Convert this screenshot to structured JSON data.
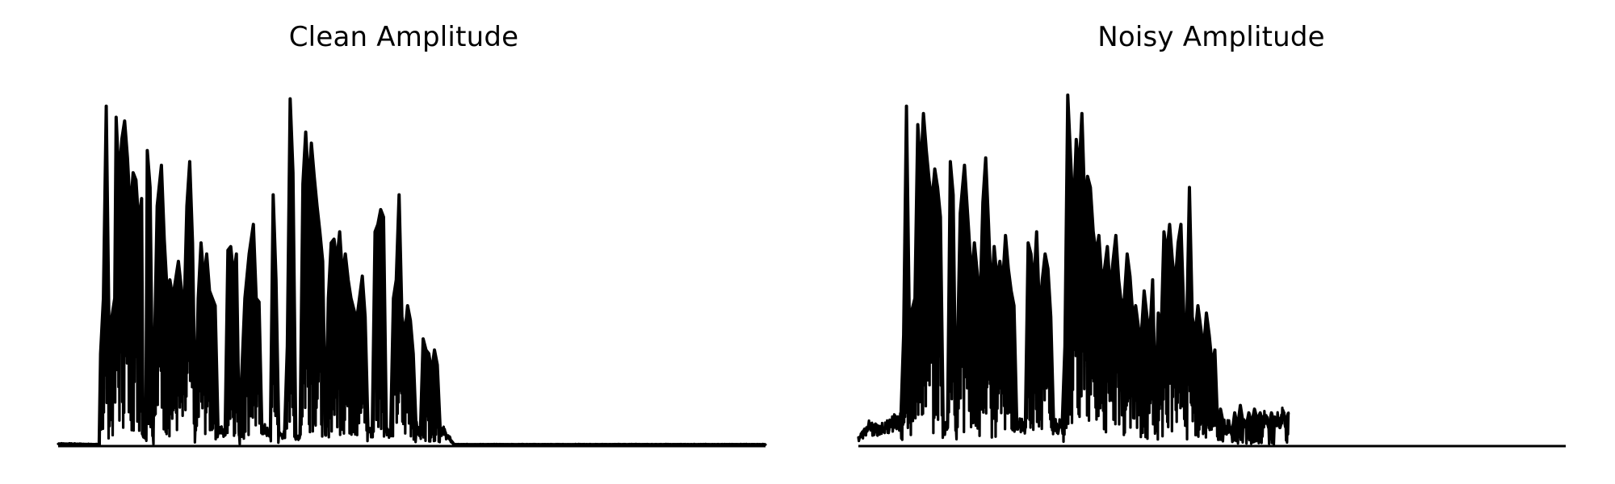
{
  "figure": {
    "background": "#ffffff",
    "line_color": "#000000"
  },
  "chart_data": [
    {
      "type": "line",
      "title": "Clean Amplitude",
      "xlabel": "",
      "ylabel": "",
      "grid": false,
      "axes_visible": false,
      "xlim": [
        0,
        1
      ],
      "ylim": [
        0,
        1
      ],
      "series": [
        {
          "values": [
            [
              0.0,
              0.006
            ],
            [
              0.058,
              0.004
            ],
            [
              0.06,
              0.25
            ],
            [
              0.064,
              0.4
            ],
            [
              0.068,
              0.92
            ],
            [
              0.072,
              0.3
            ],
            [
              0.08,
              0.4
            ],
            [
              0.082,
              0.89
            ],
            [
              0.086,
              0.72
            ],
            [
              0.09,
              0.83
            ],
            [
              0.094,
              0.88
            ],
            [
              0.098,
              0.78
            ],
            [
              0.102,
              0.63
            ],
            [
              0.106,
              0.74
            ],
            [
              0.11,
              0.72
            ],
            [
              0.114,
              0.6
            ],
            [
              0.118,
              0.67
            ],
            [
              0.12,
              0.03
            ],
            [
              0.124,
              0.03
            ],
            [
              0.126,
              0.8
            ],
            [
              0.13,
              0.7
            ],
            [
              0.134,
              0.03
            ],
            [
              0.14,
              0.65
            ],
            [
              0.146,
              0.76
            ],
            [
              0.15,
              0.56
            ],
            [
              0.154,
              0.42
            ],
            [
              0.158,
              0.45
            ],
            [
              0.162,
              0.4
            ],
            [
              0.166,
              0.45
            ],
            [
              0.17,
              0.5
            ],
            [
              0.174,
              0.43
            ],
            [
              0.178,
              0.35
            ],
            [
              0.182,
              0.65
            ],
            [
              0.186,
              0.77
            ],
            [
              0.19,
              0.55
            ],
            [
              0.194,
              0.05
            ],
            [
              0.198,
              0.4
            ],
            [
              0.202,
              0.55
            ],
            [
              0.206,
              0.45
            ],
            [
              0.21,
              0.52
            ],
            [
              0.214,
              0.42
            ],
            [
              0.218,
              0.4
            ],
            [
              0.222,
              0.38
            ],
            [
              0.226,
              0.05
            ],
            [
              0.236,
              0.03
            ],
            [
              0.24,
              0.53
            ],
            [
              0.244,
              0.54
            ],
            [
              0.248,
              0.46
            ],
            [
              0.252,
              0.52
            ],
            [
              0.256,
              0.03
            ],
            [
              0.264,
              0.4
            ],
            [
              0.27,
              0.52
            ],
            [
              0.276,
              0.6
            ],
            [
              0.28,
              0.4
            ],
            [
              0.284,
              0.39
            ],
            [
              0.288,
              0.05
            ],
            [
              0.3,
              0.03
            ],
            [
              0.304,
              0.68
            ],
            [
              0.308,
              0.45
            ],
            [
              0.312,
              0.03
            ],
            [
              0.32,
              0.03
            ],
            [
              0.324,
              0.27
            ],
            [
              0.328,
              0.94
            ],
            [
              0.332,
              0.74
            ],
            [
              0.336,
              0.02
            ],
            [
              0.342,
              0.03
            ],
            [
              0.346,
              0.71
            ],
            [
              0.35,
              0.85
            ],
            [
              0.354,
              0.7
            ],
            [
              0.358,
              0.82
            ],
            [
              0.362,
              0.73
            ],
            [
              0.366,
              0.65
            ],
            [
              0.37,
              0.58
            ],
            [
              0.374,
              0.5
            ],
            [
              0.378,
              0.03
            ],
            [
              0.382,
              0.4
            ],
            [
              0.386,
              0.55
            ],
            [
              0.39,
              0.56
            ],
            [
              0.394,
              0.5
            ],
            [
              0.398,
              0.58
            ],
            [
              0.402,
              0.46
            ],
            [
              0.406,
              0.52
            ],
            [
              0.41,
              0.45
            ],
            [
              0.414,
              0.4
            ],
            [
              0.418,
              0.37
            ],
            [
              0.422,
              0.34
            ],
            [
              0.426,
              0.4
            ],
            [
              0.43,
              0.46
            ],
            [
              0.434,
              0.35
            ],
            [
              0.438,
              0.05
            ],
            [
              0.444,
              0.03
            ],
            [
              0.448,
              0.58
            ],
            [
              0.452,
              0.6
            ],
            [
              0.456,
              0.64
            ],
            [
              0.46,
              0.62
            ],
            [
              0.464,
              0.05
            ],
            [
              0.47,
              0.03
            ],
            [
              0.474,
              0.4
            ],
            [
              0.478,
              0.45
            ],
            [
              0.482,
              0.68
            ],
            [
              0.486,
              0.35
            ],
            [
              0.49,
              0.3
            ],
            [
              0.494,
              0.38
            ],
            [
              0.498,
              0.34
            ],
            [
              0.502,
              0.25
            ],
            [
              0.506,
              0.05
            ],
            [
              0.512,
              0.03
            ],
            [
              0.516,
              0.29
            ],
            [
              0.52,
              0.26
            ],
            [
              0.524,
              0.25
            ],
            [
              0.528,
              0.2
            ],
            [
              0.532,
              0.26
            ],
            [
              0.536,
              0.22
            ],
            [
              0.54,
              0.05
            ],
            [
              0.56,
              0.004
            ],
            [
              1.0,
              0.004
            ]
          ]
        }
      ]
    },
    {
      "type": "line",
      "title": "Noisy Amplitude",
      "xlabel": "",
      "ylabel": "",
      "grid": false,
      "axes_visible": false,
      "xlim": [
        0,
        1
      ],
      "ylim": [
        0,
        1
      ],
      "series": [
        {
          "values": [
            [
              0.0,
              0.02
            ],
            [
              0.015,
              0.05
            ],
            [
              0.03,
              0.04
            ],
            [
              0.045,
              0.06
            ],
            [
              0.06,
              0.07
            ],
            [
              0.064,
              0.3
            ],
            [
              0.068,
              0.92
            ],
            [
              0.072,
              0.34
            ],
            [
              0.08,
              0.4
            ],
            [
              0.084,
              0.87
            ],
            [
              0.088,
              0.74
            ],
            [
              0.092,
              0.9
            ],
            [
              0.096,
              0.8
            ],
            [
              0.1,
              0.72
            ],
            [
              0.104,
              0.66
            ],
            [
              0.108,
              0.75
            ],
            [
              0.112,
              0.7
            ],
            [
              0.116,
              0.62
            ],
            [
              0.12,
              0.05
            ],
            [
              0.126,
              0.05
            ],
            [
              0.13,
              0.77
            ],
            [
              0.134,
              0.68
            ],
            [
              0.138,
              0.05
            ],
            [
              0.144,
              0.63
            ],
            [
              0.15,
              0.76
            ],
            [
              0.156,
              0.58
            ],
            [
              0.16,
              0.45
            ],
            [
              0.164,
              0.55
            ],
            [
              0.168,
              0.47
            ],
            [
              0.172,
              0.38
            ],
            [
              0.176,
              0.66
            ],
            [
              0.18,
              0.78
            ],
            [
              0.184,
              0.6
            ],
            [
              0.188,
              0.4
            ],
            [
              0.192,
              0.54
            ],
            [
              0.196,
              0.45
            ],
            [
              0.2,
              0.5
            ],
            [
              0.204,
              0.44
            ],
            [
              0.208,
              0.57
            ],
            [
              0.212,
              0.48
            ],
            [
              0.216,
              0.42
            ],
            [
              0.22,
              0.38
            ],
            [
              0.224,
              0.06
            ],
            [
              0.236,
              0.05
            ],
            [
              0.24,
              0.55
            ],
            [
              0.244,
              0.52
            ],
            [
              0.248,
              0.43
            ],
            [
              0.252,
              0.58
            ],
            [
              0.256,
              0.36
            ],
            [
              0.26,
              0.45
            ],
            [
              0.264,
              0.52
            ],
            [
              0.268,
              0.48
            ],
            [
              0.272,
              0.35
            ],
            [
              0.276,
              0.06
            ],
            [
              0.288,
              0.05
            ],
            [
              0.292,
              0.27
            ],
            [
              0.296,
              0.95
            ],
            [
              0.3,
              0.78
            ],
            [
              0.304,
              0.62
            ],
            [
              0.308,
              0.83
            ],
            [
              0.312,
              0.74
            ],
            [
              0.316,
              0.9
            ],
            [
              0.32,
              0.65
            ],
            [
              0.324,
              0.73
            ],
            [
              0.328,
              0.7
            ],
            [
              0.332,
              0.58
            ],
            [
              0.336,
              0.52
            ],
            [
              0.34,
              0.57
            ],
            [
              0.344,
              0.45
            ],
            [
              0.348,
              0.48
            ],
            [
              0.352,
              0.54
            ],
            [
              0.356,
              0.42
            ],
            [
              0.36,
              0.5
            ],
            [
              0.364,
              0.57
            ],
            [
              0.368,
              0.45
            ],
            [
              0.372,
              0.38
            ],
            [
              0.376,
              0.4
            ],
            [
              0.38,
              0.52
            ],
            [
              0.384,
              0.46
            ],
            [
              0.388,
              0.35
            ],
            [
              0.392,
              0.38
            ],
            [
              0.396,
              0.32
            ],
            [
              0.4,
              0.3
            ],
            [
              0.404,
              0.42
            ],
            [
              0.408,
              0.35
            ],
            [
              0.412,
              0.3
            ],
            [
              0.416,
              0.45
            ],
            [
              0.42,
              0.1
            ],
            [
              0.424,
              0.36
            ],
            [
              0.428,
              0.3
            ],
            [
              0.432,
              0.58
            ],
            [
              0.436,
              0.52
            ],
            [
              0.44,
              0.6
            ],
            [
              0.444,
              0.5
            ],
            [
              0.448,
              0.44
            ],
            [
              0.452,
              0.55
            ],
            [
              0.456,
              0.6
            ],
            [
              0.46,
              0.36
            ],
            [
              0.464,
              0.3
            ],
            [
              0.468,
              0.7
            ],
            [
              0.472,
              0.35
            ],
            [
              0.476,
              0.3
            ],
            [
              0.48,
              0.38
            ],
            [
              0.484,
              0.32
            ],
            [
              0.488,
              0.26
            ],
            [
              0.492,
              0.36
            ],
            [
              0.496,
              0.3
            ],
            [
              0.5,
              0.22
            ],
            [
              0.504,
              0.26
            ],
            [
              0.508,
              0.05
            ],
            [
              0.512,
              0.1
            ],
            [
              0.516,
              0.06
            ],
            [
              0.52,
              0.04
            ],
            [
              0.524,
              0.06
            ],
            [
              0.528,
              0.03
            ],
            [
              0.532,
              0.09
            ],
            [
              0.536,
              0.05
            ],
            [
              0.54,
              0.11
            ],
            [
              0.544,
              0.06
            ],
            [
              0.548,
              0.05
            ],
            [
              0.552,
              0.09
            ],
            [
              0.556,
              0.06
            ],
            [
              0.56,
              0.1
            ],
            [
              0.564,
              0.07
            ],
            [
              0.568,
              0.09
            ],
            [
              0.572,
              0.06
            ],
            [
              0.576,
              0.08
            ],
            [
              0.58,
              0.05
            ],
            [
              0.584,
              0.09
            ],
            [
              0.588,
              0.06
            ],
            [
              0.592,
              0.07
            ],
            [
              0.596,
              0.05
            ],
            [
              0.6,
              0.08
            ],
            [
              0.604,
              0.07
            ],
            [
              0.608,
              0.09
            ]
          ]
        }
      ]
    }
  ]
}
